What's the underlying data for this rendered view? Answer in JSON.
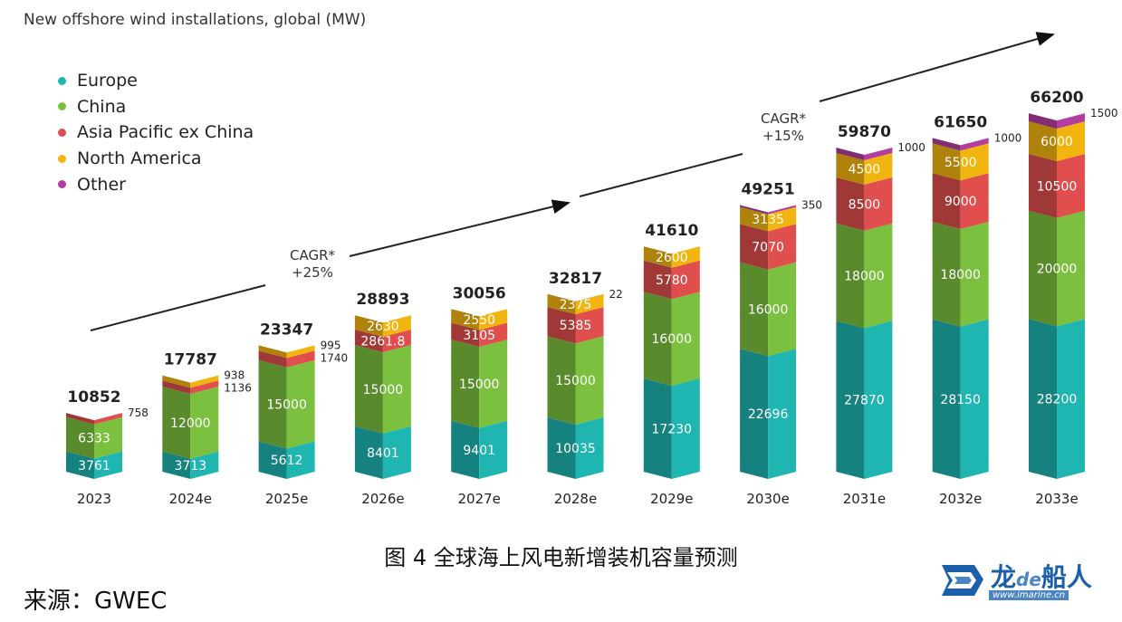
{
  "title": "New offshore wind installations, global (MW)",
  "legend": [
    {
      "label": "Europe",
      "color": "#1fb5b0"
    },
    {
      "label": "China",
      "color": "#7bc13f"
    },
    {
      "label": "Asia Pacific ex China",
      "color": "#e04e4e"
    },
    {
      "label": "North America",
      "color": "#f2b50f"
    },
    {
      "label": "Other",
      "color": "#b43e9e"
    }
  ],
  "cagr_labels": [
    {
      "line1": "CAGR*",
      "line2": "+25%"
    },
    {
      "line1": "CAGR*",
      "line2": "+15%"
    }
  ],
  "caption": "图 4 全球海上风电新增装机容量预测",
  "source": "来源：GWEC",
  "logo": {
    "text_a": "龙",
    "text_b": "de",
    "text_c": "船人",
    "url": "www.imarine.cn"
  },
  "chart_data": {
    "type": "bar",
    "stacked": true,
    "title": "New offshore wind installations, global (MW)",
    "categories": [
      "2023",
      "2024e",
      "2025e",
      "2026e",
      "2027e",
      "2028e",
      "2029e",
      "2030e",
      "2031e",
      "2032e",
      "2033e"
    ],
    "totals": [
      "10852",
      "17787",
      "23347",
      "28893",
      "30056",
      "32817",
      "41610",
      "49251",
      "59870",
      "61650",
      "66200"
    ],
    "series": [
      {
        "name": "Europe",
        "values": [
          3761,
          3713,
          5612,
          8401,
          9401,
          10035,
          17230,
          22696,
          27870,
          28150,
          28200
        ],
        "labels": [
          "3761",
          "3713",
          "5612",
          "8401",
          "9401",
          "10035",
          "17230",
          "22696",
          "27870",
          "28150",
          "28200"
        ]
      },
      {
        "name": "China",
        "values": [
          6333,
          12000,
          15000,
          15000,
          15000,
          15000,
          16000,
          16000,
          18000,
          18000,
          20000
        ],
        "labels": [
          "6333",
          "12000",
          "15000",
          "15000",
          "15000",
          "15000",
          "16000",
          "16000",
          "18000",
          "18000",
          "20000"
        ]
      },
      {
        "name": "Asia Pacific ex China",
        "values": [
          758,
          1136,
          1740,
          2861.8,
          3105,
          5385,
          5780,
          7070,
          8500,
          9000,
          10500
        ],
        "labels": [
          "758",
          "1136",
          "1740",
          "2861.8",
          "3105",
          "5385",
          "5780",
          "7070",
          "8500",
          "9000",
          "10500"
        ]
      },
      {
        "name": "North America",
        "values": [
          0,
          938,
          995,
          2630,
          2550,
          2375,
          2600,
          3135,
          4500,
          5500,
          6000
        ],
        "labels": [
          "",
          "938",
          "995",
          "2630",
          "2550",
          "2375",
          "2600",
          "3135",
          "4500",
          "5500",
          "6000"
        ]
      },
      {
        "name": "Other",
        "values": [
          0,
          0,
          0,
          0,
          0,
          22,
          0,
          350,
          1000,
          1000,
          1500
        ],
        "labels": [
          "",
          "",
          "",
          "",
          "",
          "22",
          "",
          "350",
          "1000",
          "1000",
          "1500"
        ]
      }
    ]
  }
}
